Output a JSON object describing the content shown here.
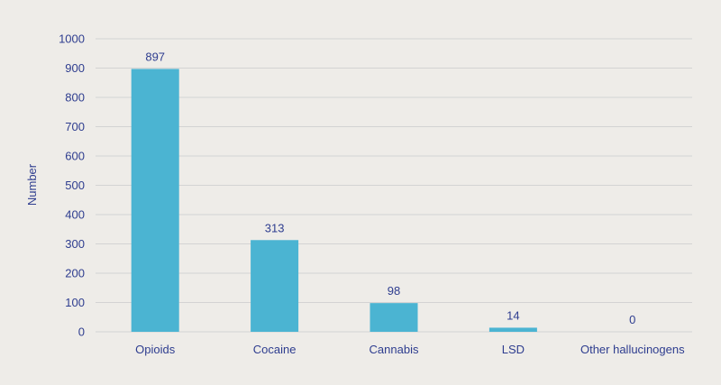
{
  "colors": {
    "background": "#eeece8",
    "bar": "#4bb4d2",
    "grid": "#d3d3d3",
    "text": "#2e3d8f"
  },
  "chart_data": {
    "type": "bar",
    "categories": [
      "Opioids",
      "Cocaine",
      "Cannabis",
      "LSD",
      "Other hallucinogens"
    ],
    "values": [
      897,
      313,
      98,
      14,
      0
    ],
    "value_labels": [
      "897",
      "313",
      "98",
      "14",
      "0"
    ],
    "title": "",
    "xlabel": "",
    "ylabel": "Number",
    "ylim": [
      0,
      1000
    ],
    "yticks": [
      0,
      100,
      200,
      300,
      400,
      500,
      600,
      700,
      800,
      900,
      1000
    ],
    "ytick_labels": [
      "0",
      "100",
      "200",
      "300",
      "400",
      "500",
      "600",
      "700",
      "800",
      "900",
      "1000"
    ],
    "grid": true,
    "legend": "none"
  }
}
